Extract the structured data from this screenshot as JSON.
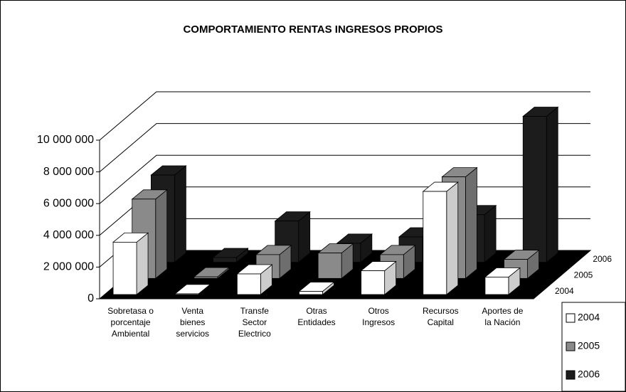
{
  "chart_data": {
    "type": "bar3d",
    "title": "COMPORTAMIENTO RENTAS INGRESOS PROPIOS",
    "categories": [
      "Sobretasa o\nporcentaje\nAmbiental",
      "Venta\nbienes\nservicios",
      "Transfe\nSector\nElectrico",
      "Otras\nEntidades",
      "Otros\nIngresos",
      "Recursos\nCapital",
      "Aportes de\nla Nación"
    ],
    "series": [
      {
        "name": "2004",
        "color": "#ffffff",
        "values": [
          3300000,
          50000,
          1300000,
          200000,
          1500000,
          6500000,
          1100000
        ]
      },
      {
        "name": "2005",
        "color": "#8a8a8a",
        "values": [
          5000000,
          100000,
          1500000,
          1600000,
          1500000,
          6400000,
          1200000
        ]
      },
      {
        "name": "2006",
        "color": "#1c1c1c",
        "values": [
          5500000,
          300000,
          2600000,
          1200000,
          1600000,
          3000000,
          9200000
        ]
      }
    ],
    "ylim": [
      0,
      10000000
    ],
    "yticks": [
      0,
      {
        "value": 2000000,
        "label": "2 000 000"
      },
      {
        "value": 4000000,
        "label": "4 000 000"
      },
      {
        "value": 6000000,
        "label": "6 000 000"
      },
      {
        "value": 8000000,
        "label": "8 000 000"
      },
      {
        "value": 10000000,
        "label": "10 000 000"
      }
    ],
    "grid": true,
    "legend": "lower right"
  }
}
